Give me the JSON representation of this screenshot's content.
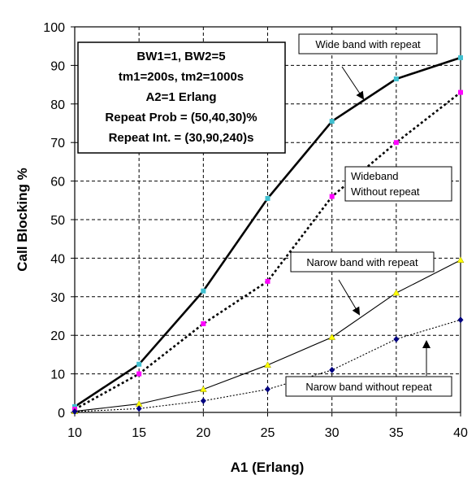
{
  "chart_data": {
    "type": "line",
    "xlabel": "A1 (Erlang)",
    "ylabel": "Call Blocking %",
    "xlim": [
      10,
      40
    ],
    "ylim": [
      0,
      100
    ],
    "x_ticks": [
      "10",
      "15",
      "20",
      "25",
      "30",
      "35",
      "40"
    ],
    "y_ticks": [
      "0",
      "10",
      "20",
      "30",
      "40",
      "50",
      "60",
      "70",
      "80",
      "90",
      "100"
    ],
    "grid": true,
    "x": [
      10,
      15,
      20,
      25,
      30,
      35,
      40
    ],
    "series": [
      {
        "name": "Wide band with repeat",
        "values": [
          1.5,
          12.5,
          31.5,
          55.5,
          75.5,
          86.5,
          92
        ],
        "line_color": "#000000",
        "line_style": "solid",
        "line_width": "thick",
        "marker": "square",
        "marker_color": "#40c0d0"
      },
      {
        "name": "Wideband Without repeat",
        "values": [
          0.8,
          10,
          23,
          34,
          56,
          70,
          83
        ],
        "line_color": "#000000",
        "line_style": "dotted",
        "line_width": "thick",
        "marker": "square",
        "marker_color": "#ff00ff"
      },
      {
        "name": "Narow band with repeat",
        "values": [
          0.3,
          2.2,
          6,
          12.3,
          19.5,
          31,
          39.5
        ],
        "line_color": "#000000",
        "line_style": "solid",
        "line_width": "thin",
        "marker": "triangle",
        "marker_color": "#ffff00"
      },
      {
        "name": "Narow band without repeat",
        "values": [
          0.2,
          1,
          3,
          6,
          11,
          19,
          24
        ],
        "line_color": "#000000",
        "line_style": "dotted",
        "line_width": "thin",
        "marker": "diamond",
        "marker_color": "#000080"
      }
    ],
    "params_box": [
      "BW1=1, BW2=5",
      "tm1=200s, tm2=1000s",
      "A2=1  Erlang",
      "Repeat Prob = (50,40,30)%",
      "Repeat Int. = (30,90,240)s"
    ],
    "annotations": [
      {
        "text": "Wide band with repeat"
      },
      {
        "text": "Wideband",
        "text2": "Without repeat"
      },
      {
        "text": "Narow band with repeat"
      },
      {
        "text": "Narow band without repeat"
      }
    ]
  }
}
